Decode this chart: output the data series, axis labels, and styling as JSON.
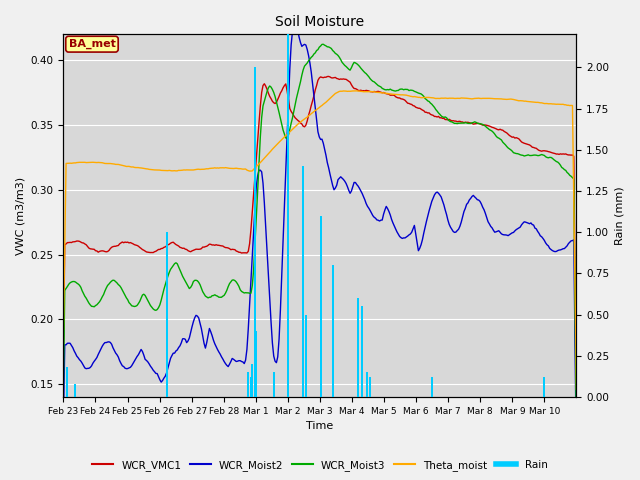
{
  "title": "Soil Moisture",
  "xlabel": "Time",
  "ylabel_left": "VWC (m3/m3)",
  "ylabel_right": "Rain (mm)",
  "ylim_left": [
    0.14,
    0.42
  ],
  "ylim_right": [
    0.0,
    2.2
  ],
  "colors": {
    "WCR_VMC1": "#cc0000",
    "WCR_Moist2": "#0000cc",
    "WCR_Moist3": "#00aa00",
    "Theta_moist": "#ffaa00",
    "Rain": "#00ccff"
  },
  "background_color": "#d8d8d8",
  "fig_background": "#f0f0f0",
  "grid_color": "#ffffff",
  "annotation_text": "BA_met",
  "annotation_bg": "#ffff99",
  "annotation_border": "#990000",
  "tick_labels": [
    "Feb 23",
    "Feb 24",
    "Feb 25",
    "Feb 26",
    "Feb 27",
    "Feb 28",
    "Mar 1",
    "Mar 2",
    "Mar 3",
    "Mar 4",
    "Mar 5",
    "Mar 6",
    "Mar 7",
    "Mar 8",
    "Mar 9",
    "Mar 10"
  ],
  "legend_labels": [
    "WCR_VMC1",
    "WCR_Moist2",
    "WCR_Moist3",
    "Theta_moist",
    "Rain"
  ]
}
